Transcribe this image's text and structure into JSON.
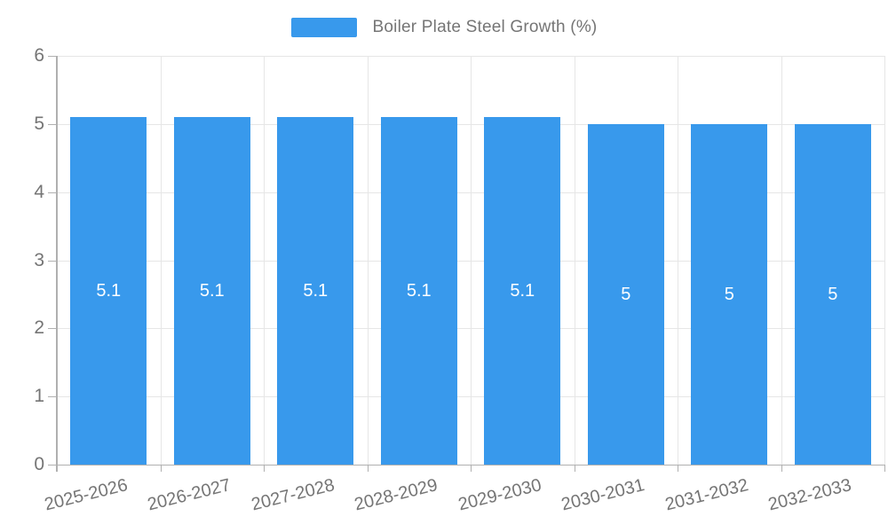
{
  "legend": {
    "label": "Boiler Plate Steel Growth (%)"
  },
  "colors": {
    "bar": "#3899EC",
    "grid": "#E6E6E6",
    "axis": "#B0B0B0",
    "text": "#757575",
    "bar_label": "#FFFFFF",
    "background": "#FFFFFF"
  },
  "chart_data": {
    "type": "bar",
    "title": "Boiler Plate Steel Growth (%)",
    "categories": [
      "2025-2026",
      "2026-2027",
      "2027-2028",
      "2028-2029",
      "2029-2030",
      "2030-2031",
      "2031-2032",
      "2032-2033"
    ],
    "series": [
      {
        "name": "Boiler Plate Steel Growth (%)",
        "values": [
          5.1,
          5.1,
          5.1,
          5.1,
          5.1,
          5,
          5,
          5
        ],
        "labels": [
          "5.1",
          "5.1",
          "5.1",
          "5.1",
          "5.1",
          "5",
          "5",
          "5"
        ]
      }
    ],
    "xlabel": "",
    "ylabel": "",
    "ylim": [
      0,
      6
    ],
    "yticks": [
      0,
      1,
      2,
      3,
      4,
      5,
      6
    ],
    "grid": true,
    "legend_position": "top",
    "bar_label_position": "center"
  }
}
